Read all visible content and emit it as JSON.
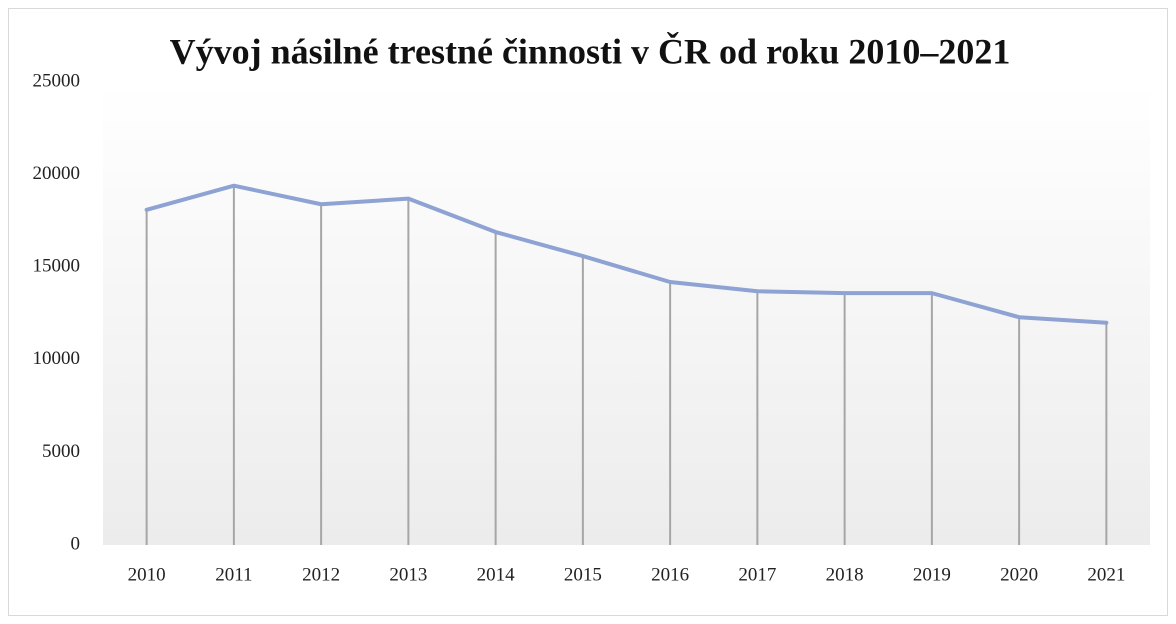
{
  "chart_data": {
    "type": "line",
    "title": "Vývoj násilné trestné činnosti v ČR od roku 2010–2021",
    "categories": [
      "2010",
      "2011",
      "2012",
      "2013",
      "2014",
      "2015",
      "2016",
      "2017",
      "2018",
      "2019",
      "2020",
      "2021"
    ],
    "values": [
      18100,
      19400,
      18400,
      18700,
      16900,
      15600,
      14200,
      13700,
      13600,
      13600,
      12300,
      12000
    ],
    "color": "#8ea2d3",
    "drop_lines": true,
    "grid": false,
    "ylim": [
      0,
      25000
    ],
    "yticks": [
      0,
      5000,
      10000,
      15000,
      20000,
      25000
    ]
  }
}
